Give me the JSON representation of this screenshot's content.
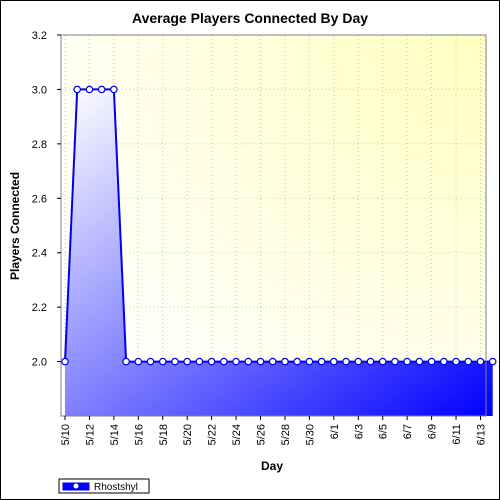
{
  "chart_data": {
    "type": "area",
    "title": "Average Players Connected By Day",
    "xlabel": "Day",
    "ylabel": "Players Connected",
    "ylim": [
      1.8,
      3.2
    ],
    "y_ticks": [
      "2.0",
      "2.2",
      "2.4",
      "2.6",
      "2.8",
      "3.0",
      "3.2"
    ],
    "x_tick_labels": [
      "5/10",
      "5/12",
      "5/14",
      "5/16",
      "5/18",
      "5/20",
      "5/22",
      "5/24",
      "5/26",
      "5/28",
      "5/30",
      "6/1",
      "6/3",
      "6/5",
      "6/7",
      "6/9",
      "6/11",
      "6/13"
    ],
    "x": [
      "5/10",
      "5/11",
      "5/12",
      "5/13",
      "5/14",
      "5/15",
      "5/16",
      "5/17",
      "5/18",
      "5/19",
      "5/20",
      "5/21",
      "5/22",
      "5/23",
      "5/24",
      "5/25",
      "5/26",
      "5/27",
      "5/28",
      "5/29",
      "5/30",
      "5/31",
      "6/1",
      "6/2",
      "6/3",
      "6/4",
      "6/5",
      "6/6",
      "6/7",
      "6/8",
      "6/9",
      "6/10",
      "6/11",
      "6/12",
      "6/13",
      "6/14"
    ],
    "series": [
      {
        "name": "Rhostshyl",
        "color": "#0000ee",
        "values": [
          2.0,
          3.0,
          3.0,
          3.0,
          3.0,
          2.0,
          2.0,
          2.0,
          2.0,
          2.0,
          2.0,
          2.0,
          2.0,
          2.0,
          2.0,
          2.0,
          2.0,
          2.0,
          2.0,
          2.0,
          2.0,
          2.0,
          2.0,
          2.0,
          2.0,
          2.0,
          2.0,
          2.0,
          2.0,
          2.0,
          2.0,
          2.0,
          2.0,
          2.0,
          2.0,
          2.0
        ]
      }
    ],
    "grid": true,
    "legend_position": "bottom-left",
    "plot_background": "#fffff0"
  }
}
